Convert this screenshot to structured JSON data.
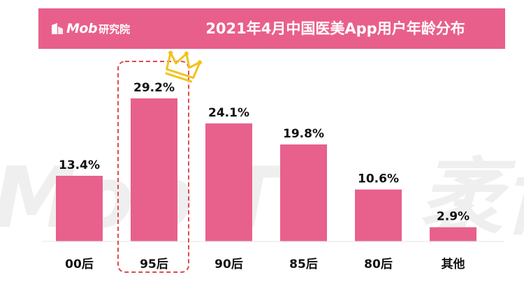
{
  "header": {
    "logo_text": "Mob",
    "logo_sub": "研究院",
    "title": "2021年4月中国医美App用户年龄分布"
  },
  "watermark": {
    "left": "Mob T",
    "right": "袤博"
  },
  "chart_data": {
    "type": "bar",
    "title": "2021年4月中国医美App用户年龄分布",
    "categories": [
      "00后",
      "95后",
      "90后",
      "85后",
      "80后",
      "其他"
    ],
    "values": [
      13.4,
      29.2,
      24.1,
      19.8,
      10.6,
      2.9
    ],
    "value_labels": [
      "13.4%",
      "29.2%",
      "24.1%",
      "19.8%",
      "10.6%",
      "2.9%"
    ],
    "highlight_index": 1,
    "unit": "%",
    "ylim": [
      0,
      30
    ],
    "grid": false,
    "colors": {
      "bar": "#e8608c",
      "header": "#e95f8c",
      "highlight_frame": "#e04a4a",
      "crown": "#f2c21b"
    }
  }
}
